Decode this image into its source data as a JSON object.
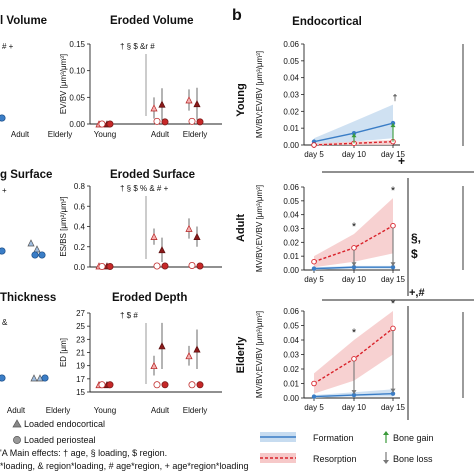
{
  "panel_b_label": "b",
  "left_titles": {
    "r1_left": "l Volume",
    "r1_right": "Eroded Volume",
    "r2_left": "g Surface",
    "r2_right": "Eroded Surface",
    "r3_left": "Thickness",
    "r3_right": "Eroded Depth"
  },
  "left_annotations": {
    "r1_left": "# +",
    "r1_right": "† § $ &r #",
    "r2_left": "+",
    "r2_right": "† § $ % & # +",
    "r3_left": "&",
    "r3_right": "† $ #"
  },
  "left_bottom_ticks": {
    "r1": [
      "Adult",
      "Elderly"
    ],
    "r3": [
      "Adult",
      "Elderly"
    ]
  },
  "left_legend": {
    "loaded_endocortical": "Loaded endocortical",
    "loaded_periosteal": "Loaded periosteal",
    "main_effects_line1": "'A Main effects: † age, § loading, $ region.",
    "main_effects_line2": "*loading, & region*loading, # age*region, + age*region*loading"
  },
  "endocortical": {
    "title": "Endocortical",
    "x_ticks": [
      "day 5",
      "day 10",
      "day 15"
    ],
    "rows": [
      "Young",
      "Adult",
      "Elderly"
    ],
    "side_symbols": {
      "plus": "+",
      "section_dollar_1": "§,",
      "section_dollar_2": "$",
      "plus_hash": "+,#"
    },
    "legend": {
      "formation": "Formation",
      "resorption": "Resorption",
      "bone_gain": "Bone gain",
      "bone_loss": "Bone loss"
    },
    "colors": {
      "formation": "#3a7dc6",
      "resorption": "#d9222a",
      "gain": "#3a9a3a",
      "loss": "#777777"
    }
  },
  "chart_data": [
    {
      "type": "scatter",
      "title": "Eroded Volume",
      "ylabel": "EV/BV [μm³/μm³]",
      "categories": [
        "Young",
        "Adult",
        "Elderly"
      ],
      "ylim": [
        0,
        0.15
      ],
      "y_ticks": [
        "0.00",
        "0.05",
        "0.10",
        "0.15"
      ],
      "series": [
        {
          "values": [
            0.0,
            0.03,
            0.045
          ],
          "err": [
            0.005,
            0.02,
            0.02
          ]
        },
        {
          "values": [
            0.0,
            0.037,
            0.038
          ],
          "err": [
            0.005,
            0.03,
            0.03
          ]
        },
        {
          "values": [
            0.0,
            0.005,
            0.005
          ],
          "err": [
            0.002,
            0.003,
            0.003
          ]
        },
        {
          "values": [
            0.0,
            0.004,
            0.004
          ],
          "err": [
            0.002,
            0.003,
            0.003
          ]
        }
      ]
    },
    {
      "type": "scatter",
      "title": "Eroded Surface",
      "ylabel": "ES/BS [μm²/μm²]",
      "categories": [
        "Young",
        "Adult",
        "Elderly"
      ],
      "ylim": [
        0,
        0.8
      ],
      "y_ticks": [
        "0.0",
        "0.2",
        "0.4",
        "0.6",
        "0.8"
      ],
      "series": [
        {
          "values": [
            0.01,
            0.3,
            0.38
          ],
          "err": [
            0.01,
            0.08,
            0.1
          ]
        },
        {
          "values": [
            0.01,
            0.17,
            0.3
          ],
          "err": [
            0.01,
            0.12,
            0.1
          ]
        },
        {
          "values": [
            0.005,
            0.01,
            0.015
          ],
          "err": [
            0.005,
            0.005,
            0.005
          ]
        },
        {
          "values": [
            0.005,
            0.01,
            0.01
          ],
          "err": [
            0.005,
            0.005,
            0.005
          ]
        }
      ]
    },
    {
      "type": "scatter",
      "title": "Eroded Depth",
      "ylabel": "ED [μm]",
      "categories": [
        "Young",
        "Adult",
        "Elderly"
      ],
      "ylim": [
        15,
        27
      ],
      "y_ticks": [
        "15",
        "17",
        "19",
        "21",
        "23",
        "25",
        "27"
      ],
      "series": [
        {
          "values": [
            16.1,
            19.0,
            20.5
          ],
          "err": [
            0.1,
            1.5,
            1.5
          ]
        },
        {
          "values": [
            16.1,
            22.0,
            21.5
          ],
          "err": [
            0.1,
            3.5,
            3.0
          ]
        },
        {
          "values": [
            16.1,
            16.1,
            16.1
          ],
          "err": [
            0.1,
            0.1,
            0.1
          ]
        },
        {
          "values": [
            16.1,
            16.1,
            16.1
          ],
          "err": [
            0.1,
            0.1,
            0.1
          ]
        }
      ]
    },
    {
      "type": "line",
      "title": "Young",
      "ylabel": "MV/BV;EV/BV [μm³/μm³]",
      "x": [
        "day 5",
        "day 10",
        "day 15"
      ],
      "ylim": [
        0,
        0.06
      ],
      "y_ticks": [
        "0.00",
        "0.01",
        "0.02",
        "0.03",
        "0.04",
        "0.05",
        "0.06"
      ],
      "annotations": [
        "†"
      ],
      "series": [
        {
          "name": "Formation",
          "values": [
            0.002,
            0.007,
            0.013
          ],
          "lo": [
            0.0,
            0.002,
            0.004
          ],
          "hi": [
            0.004,
            0.014,
            0.024
          ]
        },
        {
          "name": "Resorption",
          "values": [
            0.0,
            0.001,
            0.002
          ],
          "lo": [
            0.0,
            0.0,
            0.0
          ],
          "hi": [
            0.001,
            0.002,
            0.003
          ]
        }
      ]
    },
    {
      "type": "line",
      "title": "Adult",
      "ylabel": "MV/BV;EV/BV [μm³/μm³]",
      "x": [
        "day 5",
        "day 10",
        "day 15"
      ],
      "ylim": [
        0,
        0.06
      ],
      "y_ticks": [
        "0.00",
        "0.01",
        "0.02",
        "0.03",
        "0.04",
        "0.05",
        "0.06"
      ],
      "annotations": [
        "*",
        "*"
      ],
      "series": [
        {
          "name": "Formation",
          "values": [
            0.001,
            0.002,
            0.002
          ],
          "lo": [
            0.0,
            0.001,
            0.001
          ],
          "hi": [
            0.002,
            0.003,
            0.003
          ]
        },
        {
          "name": "Resorption",
          "values": [
            0.006,
            0.016,
            0.032
          ],
          "lo": [
            0.002,
            0.006,
            0.012
          ],
          "hi": [
            0.01,
            0.026,
            0.052
          ]
        }
      ]
    },
    {
      "type": "line",
      "title": "Elderly",
      "ylabel": "MV/BV;EV/BV [μm³/μm³]",
      "x": [
        "day 5",
        "day 10",
        "day 15"
      ],
      "ylim": [
        0,
        0.06
      ],
      "y_ticks": [
        "0.00",
        "0.01",
        "0.02",
        "0.03",
        "0.04",
        "0.05",
        "0.06"
      ],
      "annotations": [
        "*",
        "*"
      ],
      "series": [
        {
          "name": "Formation",
          "values": [
            0.001,
            0.002,
            0.003
          ],
          "lo": [
            0.0,
            0.001,
            0.001
          ],
          "hi": [
            0.002,
            0.004,
            0.006
          ]
        },
        {
          "name": "Resorption",
          "values": [
            0.01,
            0.027,
            0.048
          ],
          "lo": [
            0.003,
            0.012,
            0.03
          ],
          "hi": [
            0.017,
            0.04,
            0.06
          ]
        }
      ]
    }
  ]
}
